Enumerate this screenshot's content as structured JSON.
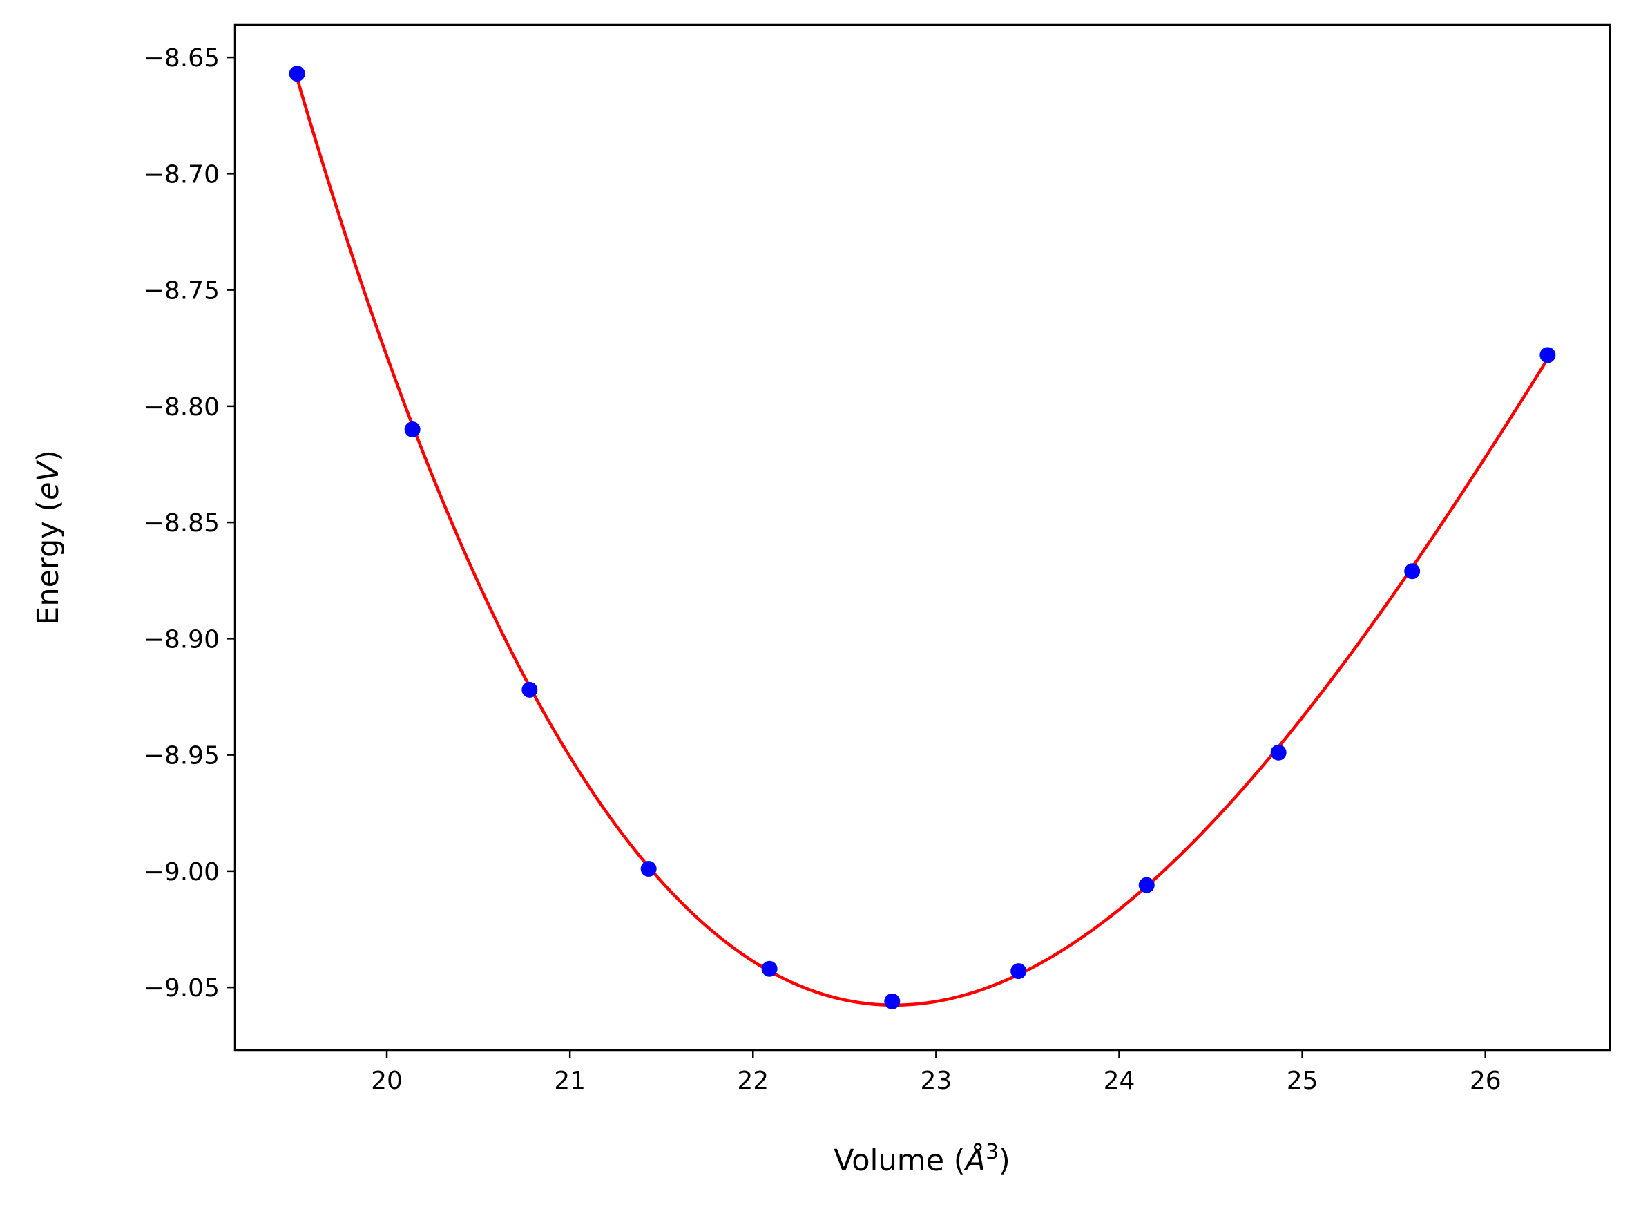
{
  "chart_data": {
    "type": "scatter",
    "title": "",
    "xlabel": {
      "prefix": "Volume (",
      "italic": "Å",
      "sup": "3",
      "suffix": ")"
    },
    "ylabel": {
      "prefix": "Energy (",
      "italic": "eV",
      "suffix": ")"
    },
    "xlim": [
      19.17,
      26.68
    ],
    "ylim": [
      -9.077,
      -8.636
    ],
    "x_ticks": [
      20,
      21,
      22,
      23,
      24,
      25,
      26
    ],
    "x_tick_labels": [
      "20",
      "21",
      "22",
      "23",
      "24",
      "25",
      "26"
    ],
    "y_ticks": [
      -8.65,
      -8.7,
      -8.75,
      -8.8,
      -8.85,
      -8.9,
      -8.95,
      -9.0,
      -9.05
    ],
    "y_tick_labels": [
      "−8.65",
      "−8.70",
      "−8.75",
      "−8.80",
      "−8.85",
      "−8.90",
      "−8.95",
      "−9.00",
      "−9.05"
    ],
    "grid": false,
    "legend": "none",
    "series": [
      {
        "kind": "points",
        "color": "#0000ff",
        "x": [
          19.51,
          20.14,
          20.78,
          21.43,
          22.09,
          22.76,
          23.45,
          24.15,
          24.87,
          25.6,
          26.34
        ],
        "y": [
          -8.657,
          -8.81,
          -8.922,
          -8.999,
          -9.042,
          -9.056,
          -9.043,
          -9.006,
          -8.949,
          -8.871,
          -8.778
        ]
      },
      {
        "kind": "fit-curve",
        "color": "#ff0000",
        "x": [
          19.51,
          20.14,
          20.78,
          21.43,
          22.09,
          22.76,
          23.45,
          24.15,
          24.87,
          25.6,
          26.34
        ],
        "y": [
          -8.657,
          -8.81,
          -8.922,
          -8.999,
          -9.042,
          -9.056,
          -9.043,
          -9.006,
          -8.949,
          -8.871,
          -8.778
        ]
      }
    ]
  }
}
